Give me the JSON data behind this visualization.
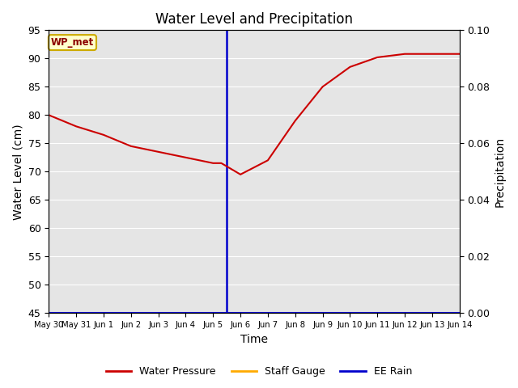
{
  "title": "Water Level and Precipitation",
  "xlabel": "Time",
  "ylabel_left": "Water Level (cm)",
  "ylabel_right": "Precipitation",
  "ylim_left": [
    45,
    95
  ],
  "ylim_right": [
    0.0,
    0.1
  ],
  "yticks_left": [
    45,
    50,
    55,
    60,
    65,
    70,
    75,
    80,
    85,
    90,
    95
  ],
  "yticks_right": [
    0.0,
    0.02,
    0.04,
    0.06,
    0.08,
    0.1
  ],
  "bg_color": "#e5e5e5",
  "annotation_label": "WP_met",
  "annotation_color": "#8b0000",
  "annotation_bg": "#ffffcc",
  "annotation_border": "#ccaa00",
  "water_pressure_color": "#cc0000",
  "staff_gauge_color": "#ffaa00",
  "ee_rain_color": "#0000cc",
  "vline_x_day": 6.5,
  "water_pressure_x": [
    0,
    1,
    2,
    3,
    4,
    5,
    6,
    6.3,
    7,
    8,
    9,
    10,
    11,
    12,
    13,
    14,
    15
  ],
  "water_pressure_y": [
    80,
    78,
    76.5,
    74.5,
    73.5,
    72.5,
    71.5,
    71.5,
    69.5,
    72,
    79,
    85,
    88.5,
    90.2,
    90.8,
    90.8,
    90.8
  ],
  "tick_days": [
    0,
    1,
    2,
    3,
    4,
    5,
    6,
    7,
    8,
    9,
    10,
    11,
    12,
    13,
    14,
    15
  ],
  "tick_labels": [
    "May 30",
    "May 31",
    "Jun 1",
    "Jun 2",
    "Jun 3",
    "Jun 4",
    "Jun 5",
    "Jun 6",
    "Jun 7",
    "Jun 8",
    "Jun 9",
    "Jun 10",
    "Jun 11",
    "Jun 12",
    "Jun 13",
    "Jun 14"
  ],
  "legend_labels": [
    "Water Pressure",
    "Staff Gauge",
    "EE Rain"
  ],
  "legend_colors": [
    "#cc0000",
    "#ffaa00",
    "#0000cc"
  ]
}
